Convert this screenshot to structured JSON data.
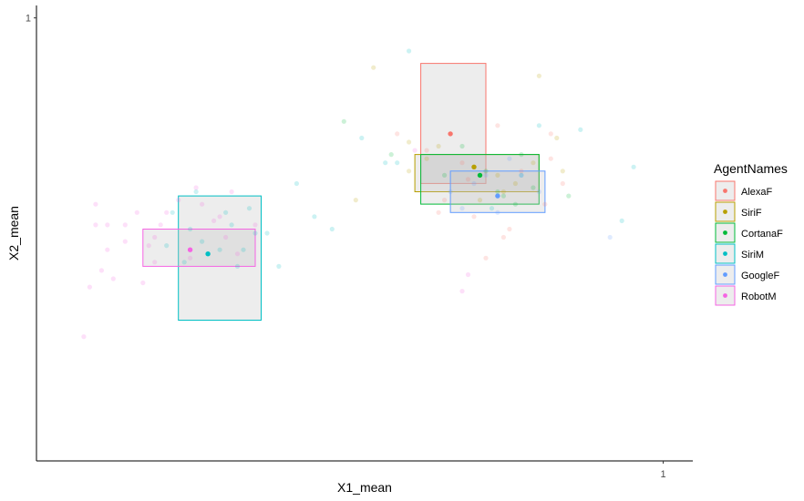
{
  "chart_data": {
    "type": "scatter",
    "xlabel": "X1_mean",
    "ylabel": "X2_mean",
    "xlim": [
      -0.06,
      1.05
    ],
    "ylim": [
      -0.07,
      1.03
    ],
    "x_ticks": [
      {
        "value": 1,
        "label": "1"
      }
    ],
    "y_ticks": [
      {
        "value": 1,
        "label": "1"
      }
    ],
    "grid": false,
    "legend": {
      "title": "AgentNames",
      "position": "right"
    },
    "series": [
      {
        "name": "AlexaF",
        "color": "#F8766D",
        "mean": [
          0.64,
          0.72
        ],
        "box": {
          "x": [
            0.59,
            0.7
          ],
          "y": [
            0.6,
            0.89
          ]
        },
        "points": [
          [
            0.63,
            0.56
          ],
          [
            0.67,
            0.61
          ],
          [
            0.72,
            0.74
          ],
          [
            0.6,
            0.68
          ],
          [
            0.68,
            0.52
          ],
          [
            0.73,
            0.47
          ],
          [
            0.74,
            0.49
          ],
          [
            0.76,
            0.63
          ],
          [
            0.7,
            0.42
          ],
          [
            0.62,
            0.53
          ],
          [
            0.55,
            0.72
          ],
          [
            0.66,
            0.65
          ],
          [
            0.81,
            0.72
          ],
          [
            0.83,
            0.6
          ],
          [
            0.81,
            0.66
          ],
          [
            0.8,
            0.55
          ]
        ]
      },
      {
        "name": "SiriF",
        "color": "#B79F00",
        "mean": [
          0.68,
          0.64
        ],
        "box": {
          "x": [
            0.58,
            0.79
          ],
          "y": [
            0.58,
            0.67
          ]
        },
        "points": [
          [
            0.51,
            0.88
          ],
          [
            0.57,
            0.7
          ],
          [
            0.6,
            0.66
          ],
          [
            0.62,
            0.69
          ],
          [
            0.73,
            0.58
          ],
          [
            0.75,
            0.6
          ],
          [
            0.79,
            0.86
          ],
          [
            0.82,
            0.71
          ],
          [
            0.48,
            0.56
          ],
          [
            0.57,
            0.63
          ],
          [
            0.72,
            0.62
          ],
          [
            0.69,
            0.56
          ],
          [
            0.83,
            0.63
          ],
          [
            0.78,
            0.65
          ]
        ]
      },
      {
        "name": "CortanaF",
        "color": "#00BA38",
        "mean": [
          0.69,
          0.62
        ],
        "box": {
          "x": [
            0.59,
            0.79
          ],
          "y": [
            0.55,
            0.67
          ]
        },
        "points": [
          [
            0.46,
            0.75
          ],
          [
            0.7,
            0.63
          ],
          [
            0.73,
            0.57
          ],
          [
            0.66,
            0.69
          ],
          [
            0.72,
            0.58
          ],
          [
            0.75,
            0.55
          ],
          [
            0.63,
            0.62
          ],
          [
            0.78,
            0.59
          ],
          [
            0.76,
            0.67
          ],
          [
            0.54,
            0.67
          ],
          [
            0.84,
            0.57
          ]
        ]
      },
      {
        "name": "SiriM",
        "color": "#00BFC4",
        "mean": [
          0.23,
          0.43
        ],
        "box": {
          "x": [
            0.18,
            0.32
          ],
          "y": [
            0.27,
            0.57
          ]
        },
        "points": [
          [
            0.57,
            0.92
          ],
          [
            0.86,
            0.73
          ],
          [
            0.95,
            0.64
          ],
          [
            0.93,
            0.51
          ],
          [
            0.38,
            0.6
          ],
          [
            0.41,
            0.52
          ],
          [
            0.44,
            0.49
          ],
          [
            0.49,
            0.71
          ],
          [
            0.53,
            0.65
          ],
          [
            0.55,
            0.65
          ],
          [
            0.71,
            0.54
          ],
          [
            0.76,
            0.62
          ],
          [
            0.79,
            0.74
          ],
          [
            0.35,
            0.4
          ],
          [
            0.21,
            0.58
          ],
          [
            0.17,
            0.53
          ],
          [
            0.2,
            0.49
          ],
          [
            0.25,
            0.44
          ],
          [
            0.29,
            0.44
          ],
          [
            0.3,
            0.54
          ],
          [
            0.19,
            0.41
          ],
          [
            0.31,
            0.48
          ],
          [
            0.27,
            0.5
          ],
          [
            0.16,
            0.45
          ],
          [
            0.22,
            0.46
          ],
          [
            0.28,
            0.4
          ],
          [
            0.26,
            0.53
          ],
          [
            0.33,
            0.48
          ]
        ]
      },
      {
        "name": "GoogleF",
        "color": "#619CFF",
        "mean": [
          0.72,
          0.57
        ],
        "box": {
          "x": [
            0.64,
            0.8
          ],
          "y": [
            0.53,
            0.63
          ]
        },
        "points": [
          [
            0.66,
            0.54
          ],
          [
            0.76,
            0.62
          ],
          [
            0.68,
            0.6
          ],
          [
            0.72,
            0.53
          ],
          [
            0.91,
            0.47
          ],
          [
            0.74,
            0.66
          ],
          [
            0.79,
            0.58
          ],
          [
            0.7,
            0.62
          ],
          [
            0.64,
            0.58
          ]
        ]
      },
      {
        "name": "RobotM",
        "color": "#F564E3",
        "mean": [
          0.2,
          0.44
        ],
        "box": {
          "x": [
            0.12,
            0.31
          ],
          "y": [
            0.4,
            0.49
          ]
        },
        "points": [
          [
            0.04,
            0.55
          ],
          [
            0.11,
            0.53
          ],
          [
            0.06,
            0.5
          ],
          [
            0.09,
            0.46
          ],
          [
            0.14,
            0.47
          ],
          [
            0.16,
            0.53
          ],
          [
            0.18,
            0.56
          ],
          [
            0.22,
            0.55
          ],
          [
            0.24,
            0.51
          ],
          [
            0.2,
            0.42
          ],
          [
            0.26,
            0.47
          ],
          [
            0.28,
            0.43
          ],
          [
            0.06,
            0.44
          ],
          [
            0.03,
            0.35
          ],
          [
            0.07,
            0.37
          ],
          [
            0.05,
            0.39
          ],
          [
            0.02,
            0.23
          ],
          [
            0.12,
            0.36
          ],
          [
            0.21,
            0.59
          ],
          [
            0.25,
            0.52
          ],
          [
            0.27,
            0.58
          ],
          [
            0.09,
            0.5
          ],
          [
            0.15,
            0.5
          ],
          [
            0.14,
            0.41
          ],
          [
            0.31,
            0.5
          ],
          [
            0.13,
            0.45
          ],
          [
            0.67,
            0.38
          ],
          [
            0.04,
            0.5
          ],
          [
            0.66,
            0.34
          ],
          [
            0.58,
            0.68
          ]
        ]
      }
    ]
  }
}
